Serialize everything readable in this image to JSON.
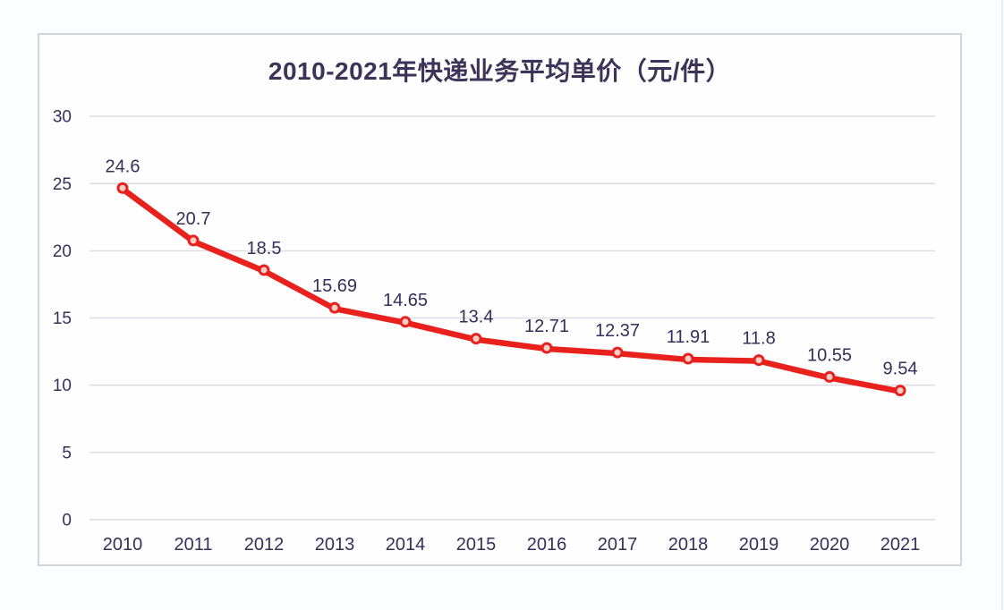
{
  "panel": {
    "background": "#fefeff",
    "border_color": "#d0d4dc"
  },
  "chart_data": {
    "type": "line",
    "title": "2010-2021年快递业务平均单价（元/件）",
    "categories": [
      "2010",
      "2011",
      "2012",
      "2013",
      "2014",
      "2015",
      "2016",
      "2017",
      "2018",
      "2019",
      "2020",
      "2021"
    ],
    "values": [
      24.6,
      20.7,
      18.5,
      15.69,
      14.65,
      13.4,
      12.71,
      12.37,
      11.91,
      11.8,
      10.55,
      9.54
    ],
    "xlabel": "",
    "ylabel": "",
    "ylim": [
      0,
      30
    ],
    "yticks": [
      0,
      5,
      10,
      15,
      20,
      25,
      30
    ],
    "grid": true,
    "legend": false,
    "data_labels_shown": true,
    "line_color": "#e8211d",
    "marker_fill": "#f6cfc9",
    "grid_color": "#d9dce3",
    "axis_text_color": "#33305a",
    "label_text_color": "#33305a",
    "title_color": "#3b3358"
  }
}
